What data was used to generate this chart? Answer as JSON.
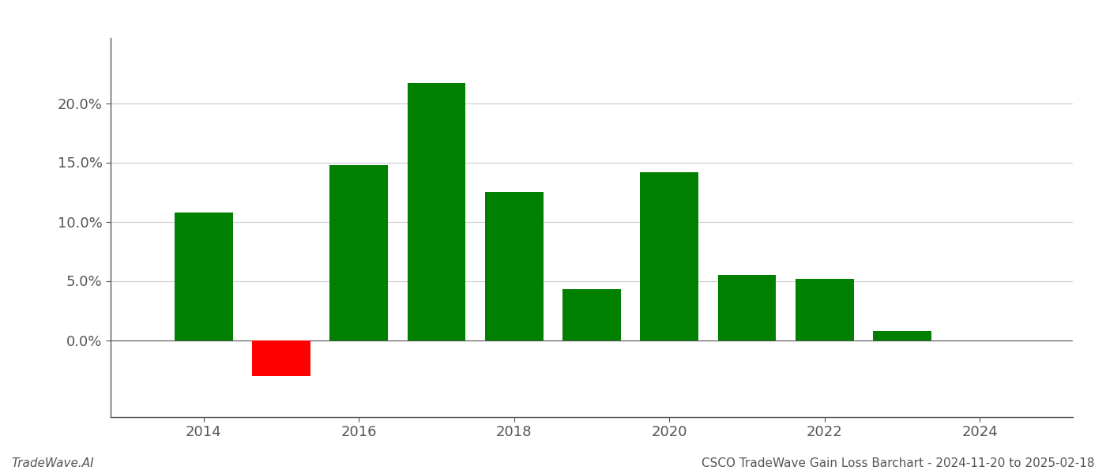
{
  "years": [
    2014,
    2015,
    2016,
    2017,
    2018,
    2019,
    2020,
    2021,
    2022,
    2023
  ],
  "values": [
    0.108,
    -0.03,
    0.148,
    0.217,
    0.125,
    0.043,
    0.142,
    0.055,
    0.052,
    0.008
  ],
  "colors": [
    "#008000",
    "#ff0000",
    "#008000",
    "#008000",
    "#008000",
    "#008000",
    "#008000",
    "#008000",
    "#008000",
    "#008000"
  ],
  "title": "CSCO TradeWave Gain Loss Barchart - 2024-11-20 to 2025-02-18",
  "footer_left": "TradeWave.AI",
  "ylim_min": -0.065,
  "ylim_max": 0.255,
  "background_color": "#ffffff",
  "grid_color": "#cccccc",
  "bar_width": 0.75,
  "yticks": [
    0.0,
    0.05,
    0.1,
    0.15,
    0.2
  ],
  "ytick_labels": [
    "0.0%",
    "5.0%",
    "10.0%",
    "15.0%",
    "20.0%"
  ],
  "xticks": [
    2014,
    2016,
    2018,
    2020,
    2022,
    2024
  ],
  "axis_color": "#555555",
  "tick_fontsize": 13,
  "footer_fontsize": 11,
  "xlim_min": 2012.8,
  "xlim_max": 2025.2
}
